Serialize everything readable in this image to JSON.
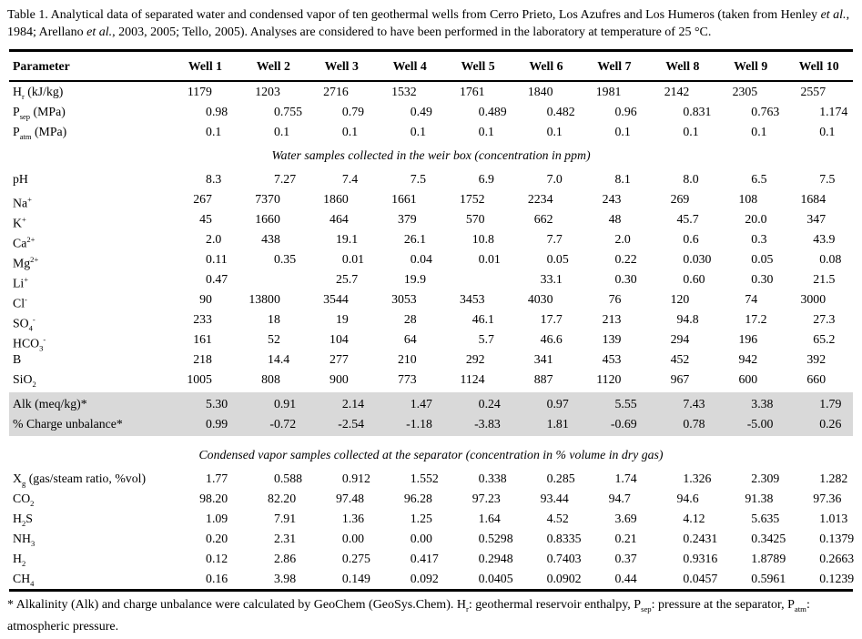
{
  "caption": {
    "segments": [
      {
        "t": "Table 1. Analytical data of separated water and condensed vapor of ten geothermal wells from Cerro Prieto, Los Azufres and Los Humeros (taken from Henley "
      },
      {
        "t": "et al.",
        "i": true
      },
      {
        "t": ", 1984; Arellano "
      },
      {
        "t": "et al.",
        "i": true
      },
      {
        "t": ", 2003, 2005; Tello, 2005). Analyses are considered to have been performed in the laboratory at temperature of 25 °C."
      }
    ]
  },
  "table": {
    "header": {
      "parameter": "Parameter",
      "wells": [
        "Well 1",
        "Well 2",
        "Well 3",
        "Well 4",
        "Well 5",
        "Well 6",
        "Well 7",
        "Well 8",
        "Well 9",
        "Well 10"
      ]
    },
    "rows": [
      {
        "type": "data",
        "name": "Hr",
        "label": [
          {
            "t": "H"
          },
          {
            "t": "r",
            "sub": true
          },
          {
            "t": " (kJ/kg)"
          }
        ],
        "values": [
          "1179",
          "1203",
          "2716",
          "1532",
          "1761",
          "1840",
          "1981",
          "2142",
          "2305",
          "2557"
        ]
      },
      {
        "type": "data",
        "name": "Psep",
        "label": [
          {
            "t": "P"
          },
          {
            "t": "sep",
            "sub": true
          },
          {
            "t": " (MPa)"
          }
        ],
        "values": [
          "0.98",
          "0.755",
          "0.79",
          "0.49",
          "0.489",
          "0.482",
          "0.96",
          "0.831",
          "0.763",
          "1.174"
        ]
      },
      {
        "type": "data",
        "name": "Patm",
        "label": [
          {
            "t": "P"
          },
          {
            "t": "atm",
            "sub": true
          },
          {
            "t": " (MPa)"
          }
        ],
        "values": [
          "0.1",
          "0.1",
          "0.1",
          "0.1",
          "0.1",
          "0.1",
          "0.1",
          "0.1",
          "0.1",
          "0.1"
        ]
      },
      {
        "type": "section",
        "text": "Water samples collected in the weir box (concentration in ppm)"
      },
      {
        "type": "data",
        "name": "pH",
        "label": [
          {
            "t": "pH"
          }
        ],
        "values": [
          "8.3",
          "7.27",
          "7.4",
          "7.5",
          "6.9",
          "7.0",
          "8.1",
          "8.0",
          "6.5",
          "7.5"
        ]
      },
      {
        "type": "data",
        "name": "Na",
        "label": [
          {
            "t": "Na"
          },
          {
            "t": "+",
            "sup": true
          }
        ],
        "values": [
          "267",
          "7370",
          "1860",
          "1661",
          "1752",
          "2234",
          "243",
          "269",
          "108",
          "1684"
        ]
      },
      {
        "type": "data",
        "name": "K",
        "label": [
          {
            "t": "K"
          },
          {
            "t": "+",
            "sup": true
          }
        ],
        "values": [
          "45",
          "1660",
          "464",
          "379",
          "570",
          "662",
          "48",
          "45.7",
          "20.0",
          "347"
        ]
      },
      {
        "type": "data",
        "name": "Ca",
        "label": [
          {
            "t": "Ca"
          },
          {
            "t": "2+",
            "sup": true
          }
        ],
        "values": [
          "2.0",
          "438",
          "19.1",
          "26.1",
          "10.8",
          "7.7",
          "2.0",
          "0.6",
          "0.3",
          "43.9"
        ]
      },
      {
        "type": "data",
        "name": "Mg",
        "label": [
          {
            "t": "Mg"
          },
          {
            "t": "2+",
            "sup": true
          }
        ],
        "values": [
          "0.11",
          "0.35",
          "0.01",
          "0.04",
          "0.01",
          "0.05",
          "0.22",
          "0.030",
          "0.05",
          "0.08"
        ]
      },
      {
        "type": "data",
        "name": "Li",
        "label": [
          {
            "t": "Li"
          },
          {
            "t": "+",
            "sup": true
          }
        ],
        "values": [
          "0.47",
          "",
          "25.7",
          "19.9",
          "",
          "33.1",
          "0.30",
          "0.60",
          "0.30",
          "21.5"
        ]
      },
      {
        "type": "data",
        "name": "Cl",
        "label": [
          {
            "t": "Cl"
          },
          {
            "t": "-",
            "sup": true
          }
        ],
        "values": [
          "90",
          "13800",
          "3544",
          "3053",
          "3453",
          "4030",
          "76",
          "120",
          "74",
          "3000"
        ]
      },
      {
        "type": "data",
        "name": "SO4",
        "label": [
          {
            "t": "SO"
          },
          {
            "t": "4",
            "sub": true
          },
          {
            "t": "-",
            "sup": true
          }
        ],
        "values": [
          "233",
          "18",
          "19",
          "28",
          "46.1",
          "17.7",
          "213",
          "94.8",
          "17.2",
          "27.3"
        ]
      },
      {
        "type": "data",
        "name": "HCO3",
        "label": [
          {
            "t": "HCO"
          },
          {
            "t": "3",
            "sub": true
          },
          {
            "t": "-",
            "sup": true
          }
        ],
        "values": [
          "161",
          "52",
          "104",
          "64",
          "5.7",
          "46.6",
          "139",
          "294",
          "196",
          "65.2"
        ]
      },
      {
        "type": "data",
        "name": "B",
        "label": [
          {
            "t": "B"
          }
        ],
        "values": [
          "218",
          "14.4",
          "277",
          "210",
          "292",
          "341",
          "453",
          "452",
          "942",
          "392"
        ]
      },
      {
        "type": "data",
        "name": "SiO2",
        "label": [
          {
            "t": "SiO"
          },
          {
            "t": "2",
            "sub": true
          }
        ],
        "values": [
          "1005",
          "808",
          "900",
          "773",
          "1124",
          "887",
          "1120",
          "967",
          "600",
          "660"
        ]
      },
      {
        "type": "data",
        "name": "Alk",
        "shaded": true,
        "label": [
          {
            "t": "Alk (meq/kg)*"
          }
        ],
        "values": [
          "5.30",
          "0.91",
          "2.14",
          "1.47",
          "0.24",
          "0.97",
          "5.55",
          "7.43",
          "3.38",
          "1.79"
        ]
      },
      {
        "type": "data",
        "name": "charge-unbalance",
        "shaded": true,
        "label": [
          {
            "t": "% Charge unbalance*"
          }
        ],
        "values": [
          "0.99",
          "-0.72",
          "-2.54",
          "-1.18",
          "-3.83",
          "1.81",
          "-0.69",
          "0.78",
          "-5.00",
          "0.26"
        ]
      },
      {
        "type": "section",
        "text": "Condensed vapor samples collected at the separator (concentration in % volume in dry gas)"
      },
      {
        "type": "data",
        "name": "Xg",
        "label": [
          {
            "t": "X"
          },
          {
            "t": "g",
            "sub": true
          },
          {
            "t": " (gas/steam ratio, %vol)"
          }
        ],
        "values": [
          "1.77",
          "0.588",
          "0.912",
          "1.552",
          "0.338",
          "0.285",
          "1.74",
          "1.326",
          "2.309",
          "1.282"
        ]
      },
      {
        "type": "data",
        "name": "CO2",
        "label": [
          {
            "t": "CO"
          },
          {
            "t": "2",
            "sub": true
          }
        ],
        "values": [
          "98.20",
          "82.20",
          "97.48",
          "96.28",
          "97.23",
          "93.44",
          "94.7",
          "94.6",
          "91.38",
          "97.36"
        ]
      },
      {
        "type": "data",
        "name": "H2S",
        "label": [
          {
            "t": "H"
          },
          {
            "t": "2",
            "sub": true
          },
          {
            "t": "S"
          }
        ],
        "values": [
          "1.09",
          "7.91",
          "1.36",
          "1.25",
          "1.64",
          "4.52",
          "3.69",
          "4.12",
          "5.635",
          "1.013"
        ]
      },
      {
        "type": "data",
        "name": "NH3",
        "label": [
          {
            "t": "NH"
          },
          {
            "t": "3",
            "sub": true
          }
        ],
        "values": [
          "0.20",
          "2.31",
          "0.00",
          "0.00",
          "0.5298",
          "0.8335",
          "0.21",
          "0.2431",
          "0.3425",
          "0.1379"
        ]
      },
      {
        "type": "data",
        "name": "H2",
        "label": [
          {
            "t": "H"
          },
          {
            "t": "2",
            "sub": true
          }
        ],
        "values": [
          "0.12",
          "2.86",
          "0.275",
          "0.417",
          "0.2948",
          "0.7403",
          "0.37",
          "0.9316",
          "1.8789",
          "0.2663"
        ]
      },
      {
        "type": "data",
        "name": "CH4",
        "label": [
          {
            "t": "CH"
          },
          {
            "t": "4",
            "sub": true
          }
        ],
        "values": [
          "0.16",
          "3.98",
          "0.149",
          "0.092",
          "0.0405",
          "0.0902",
          "0.44",
          "0.0457",
          "0.5961",
          "0.1239"
        ]
      }
    ]
  },
  "footnote": {
    "segments": [
      {
        "t": "* Alkalinity (Alk) and charge unbalance were calculated by GeoChem (GeoSys.Chem). H"
      },
      {
        "t": "r",
        "sub": true
      },
      {
        "t": ": geothermal reservoir enthalpy, P"
      },
      {
        "t": "sep",
        "sub": true
      },
      {
        "t": ": pressure at the separator, P"
      },
      {
        "t": "atm",
        "sub": true
      },
      {
        "t": ": atmospheric pressure."
      }
    ]
  },
  "colors": {
    "shaded_row": "#d9d9d9",
    "text": "#000000",
    "background": "#ffffff"
  }
}
